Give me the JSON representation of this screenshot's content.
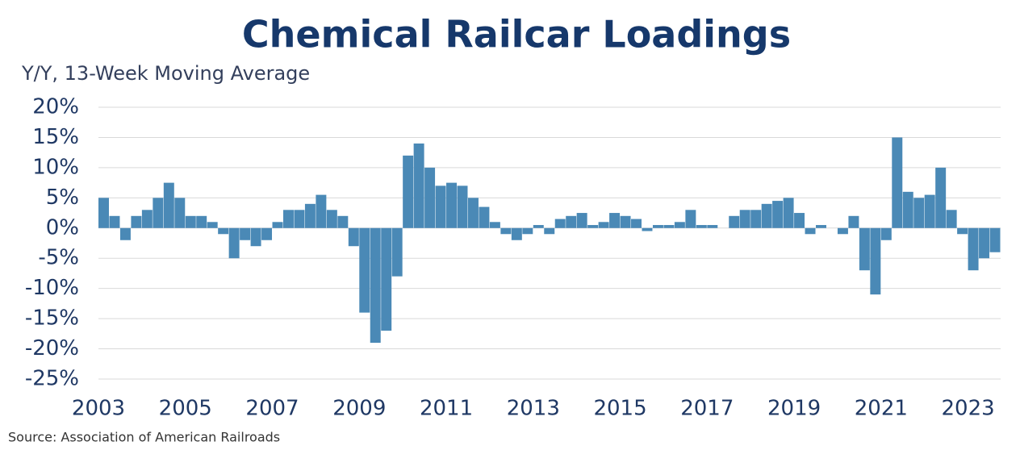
{
  "chart_data": {
    "type": "bar",
    "title": "Chemical Railcar Loadings",
    "subtitle": "Y/Y, 13-Week Moving Average",
    "source": "Source:  Association of American Railroads",
    "color": "#4a89b6",
    "grid": true,
    "x": [
      2003,
      2003.25,
      2003.5,
      2003.75,
      2004,
      2004.25,
      2004.5,
      2004.75,
      2005,
      2005.25,
      2005.5,
      2005.75,
      2006,
      2006.25,
      2006.5,
      2006.75,
      2007,
      2007.25,
      2007.5,
      2007.75,
      2008,
      2008.25,
      2008.5,
      2008.75,
      2009,
      2009.25,
      2009.5,
      2009.75,
      2010,
      2010.25,
      2010.5,
      2010.75,
      2011,
      2011.25,
      2011.5,
      2011.75,
      2012,
      2012.25,
      2012.5,
      2012.75,
      2013,
      2013.25,
      2013.5,
      2013.75,
      2014,
      2014.25,
      2014.5,
      2014.75,
      2015,
      2015.25,
      2015.5,
      2015.75,
      2016,
      2016.25,
      2016.5,
      2016.75,
      2017,
      2017.25,
      2017.5,
      2017.75,
      2018,
      2018.25,
      2018.5,
      2018.75,
      2019,
      2019.25,
      2019.5,
      2019.75,
      2020,
      2020.25,
      2020.5,
      2020.75,
      2021,
      2021.25,
      2021.5,
      2021.75,
      2022,
      2022.25,
      2022.5,
      2022.75,
      2023,
      2023.25,
      2023.5
    ],
    "values": [
      5,
      2,
      -2,
      2,
      3,
      5,
      7.5,
      5,
      2,
      2,
      1,
      -1,
      -5,
      -2,
      -3,
      -2,
      1,
      3,
      3,
      4,
      5.5,
      3,
      2,
      -3,
      -14,
      -19,
      -17,
      -8,
      12,
      14,
      10,
      7,
      7.5,
      7,
      5,
      3.5,
      1,
      -1,
      -2,
      -1,
      0.5,
      -1,
      1.5,
      2,
      2.5,
      0.5,
      1,
      2.5,
      2,
      1.5,
      -0.5,
      0.5,
      0.5,
      1,
      3,
      0.5,
      0.5,
      0,
      2,
      3,
      3,
      4,
      4.5,
      5,
      2.5,
      -1,
      0.5,
      0,
      -1,
      2,
      -7,
      -11,
      -2,
      15,
      6,
      5,
      5.5,
      10,
      3,
      -1,
      -7,
      -5,
      -4
    ],
    "xlim": [
      2003,
      2023.75
    ],
    "xticks": [
      2003,
      2005,
      2007,
      2009,
      2011,
      2013,
      2015,
      2017,
      2019,
      2021,
      2023
    ],
    "ylim": [
      -25,
      20
    ],
    "yticks": [
      {
        "value": 20,
        "label": "20%"
      },
      {
        "value": 15,
        "label": "15%"
      },
      {
        "value": 10,
        "label": "10%"
      },
      {
        "value": 5,
        "label": "5%"
      },
      {
        "value": 0,
        "label": "0%"
      },
      {
        "value": -5,
        "label": "-5%"
      },
      {
        "value": -10,
        "label": "-10%"
      },
      {
        "value": -15,
        "label": "-15%"
      },
      {
        "value": -20,
        "label": "-20%"
      },
      {
        "value": -25,
        "label": "-25%"
      }
    ]
  }
}
